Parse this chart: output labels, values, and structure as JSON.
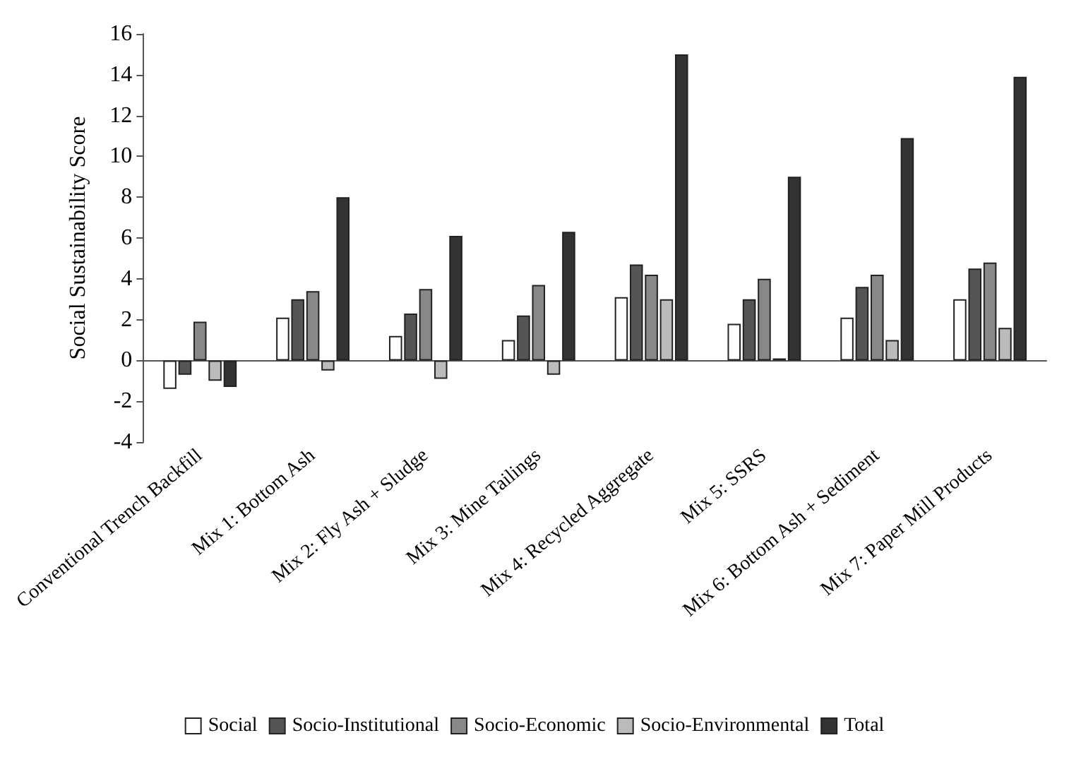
{
  "chart_data": {
    "type": "bar",
    "ylabel": "Social Sustainability Score",
    "categories": [
      "Conventional Trench Backfill",
      "Mix 1: Bottom Ash",
      "Mix 2: Fly Ash + Sludge",
      "Mix 3: Mine Tailings",
      "Mix 4: Recycled Aggregate",
      "Mix 5: SSRS",
      "Mix 6: Bottom Ash + Sediment",
      "Mix 7: Paper Mill Products"
    ],
    "series": [
      {
        "name": "Social",
        "color": "#ffffff",
        "values": [
          -1.4,
          2.1,
          1.2,
          1.0,
          3.1,
          1.8,
          2.1,
          3.0
        ]
      },
      {
        "name": "Socio-Institutional",
        "color": "#555555",
        "values": [
          -0.7,
          3.0,
          2.3,
          2.2,
          4.7,
          3.0,
          3.6,
          4.5
        ]
      },
      {
        "name": "Socio-Economic",
        "color": "#888888",
        "values": [
          1.9,
          3.4,
          3.5,
          3.7,
          4.2,
          4.0,
          4.2,
          4.8
        ]
      },
      {
        "name": "Socio-Environmental",
        "color": "#bbbbbb",
        "values": [
          -1.0,
          -0.5,
          -0.9,
          -0.7,
          3.0,
          0.1,
          1.0,
          1.6
        ]
      },
      {
        "name": "Total",
        "color": "#333333",
        "values": [
          -1.3,
          8.0,
          6.1,
          6.3,
          15.0,
          9.0,
          10.9,
          13.9
        ]
      }
    ],
    "ylim": [
      -4,
      16
    ],
    "yticks": [
      -4,
      -2,
      0,
      2,
      4,
      6,
      8,
      10,
      12,
      14,
      16
    ],
    "legend": "bottom"
  }
}
